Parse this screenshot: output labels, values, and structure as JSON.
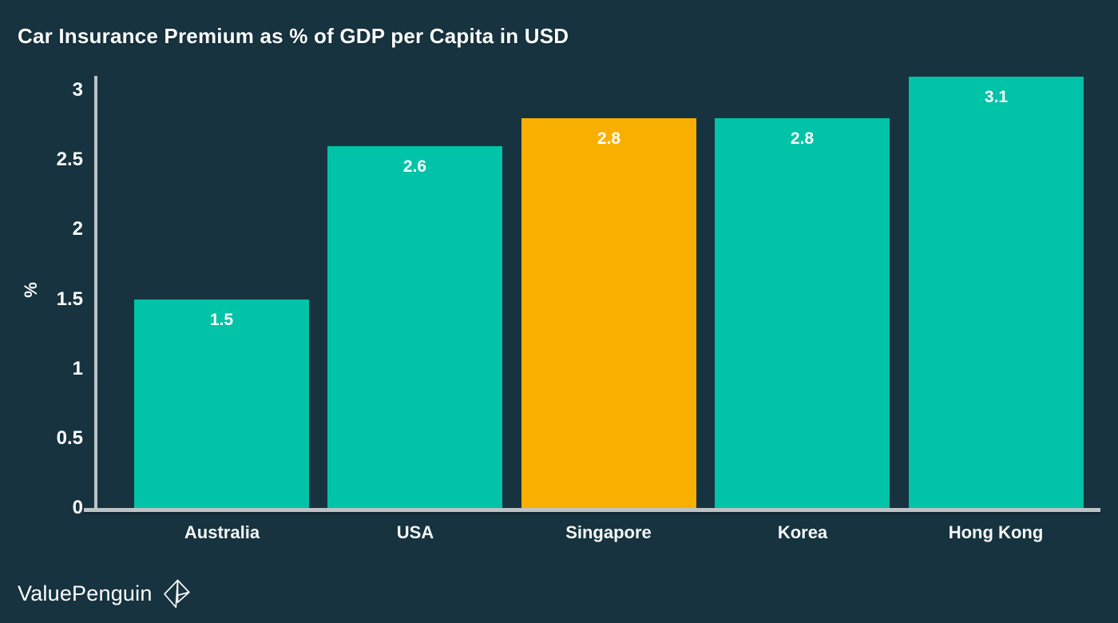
{
  "colors": {
    "background": "#16333F",
    "bar_teal": "#00C3A8",
    "bar_orange": "#F9AF00",
    "axis": "#BDC3C5",
    "text": "#FFFFFF"
  },
  "chart_data": {
    "type": "bar",
    "title": "Car Insurance Premium as % of GDP per Capita in USD",
    "categories": [
      "Australia",
      "USA",
      "Singapore",
      "Korea",
      "Hong Kong"
    ],
    "values": [
      1.5,
      2.6,
      2.8,
      2.8,
      3.1
    ],
    "value_labels": [
      "1.5",
      "2.6",
      "2.8",
      "2.8",
      "3.1"
    ],
    "bar_colors": [
      "#00C3A8",
      "#00C3A8",
      "#F9AF00",
      "#00C3A8",
      "#00C3A8"
    ],
    "highlighted_category": "Singapore",
    "xlabel": "",
    "ylabel": "%",
    "ylim": [
      0,
      3.1
    ],
    "yticks": [
      0,
      0.5,
      1,
      1.5,
      2,
      2.5,
      3
    ],
    "ytick_labels": [
      "0",
      "0.5",
      "1",
      "1.5",
      "2",
      "2.5",
      "3"
    ],
    "grid": false,
    "legend_position": "none"
  },
  "branding": {
    "logo_text": "ValuePenguin",
    "logo_icon": "origami-penguin-icon"
  }
}
